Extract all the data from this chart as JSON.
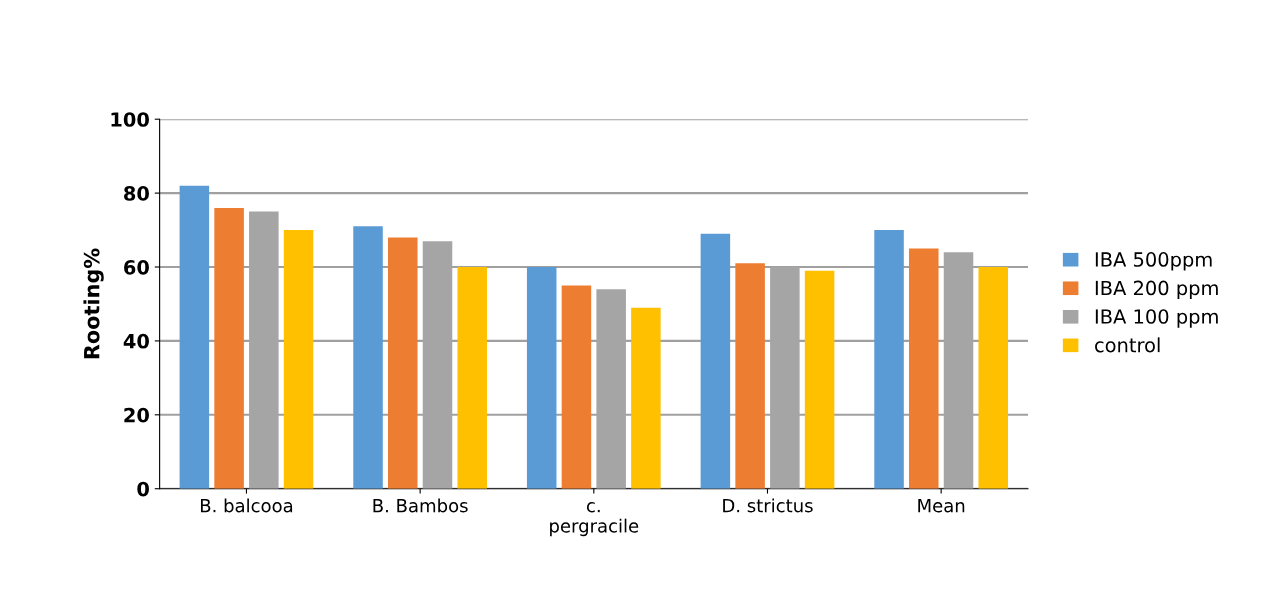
{
  "chart_data": {
    "type": "bar",
    "ylabel": "Rooting%",
    "categories": [
      "B. balcooa",
      "B. Bambos",
      "c.\npergracile",
      "D. strictus",
      "Mean"
    ],
    "series": [
      {
        "name": "IBA 500ppm",
        "color": "#5b9bd5",
        "values": [
          82,
          71,
          60,
          69,
          70
        ]
      },
      {
        "name": "IBA 200 ppm",
        "color": "#ed7d31",
        "values": [
          76,
          68,
          55,
          61,
          65
        ]
      },
      {
        "name": "IBA 100 ppm",
        "color": "#a5a5a5",
        "values": [
          75,
          67,
          54,
          60,
          64
        ]
      },
      {
        "name": "control",
        "color": "#ffc000",
        "values": [
          70,
          60,
          49,
          59,
          60
        ]
      }
    ],
    "ylim": [
      0,
      100
    ],
    "yticks": [
      0,
      20,
      40,
      60,
      80,
      100
    ],
    "grid": "y",
    "legend": "right"
  }
}
